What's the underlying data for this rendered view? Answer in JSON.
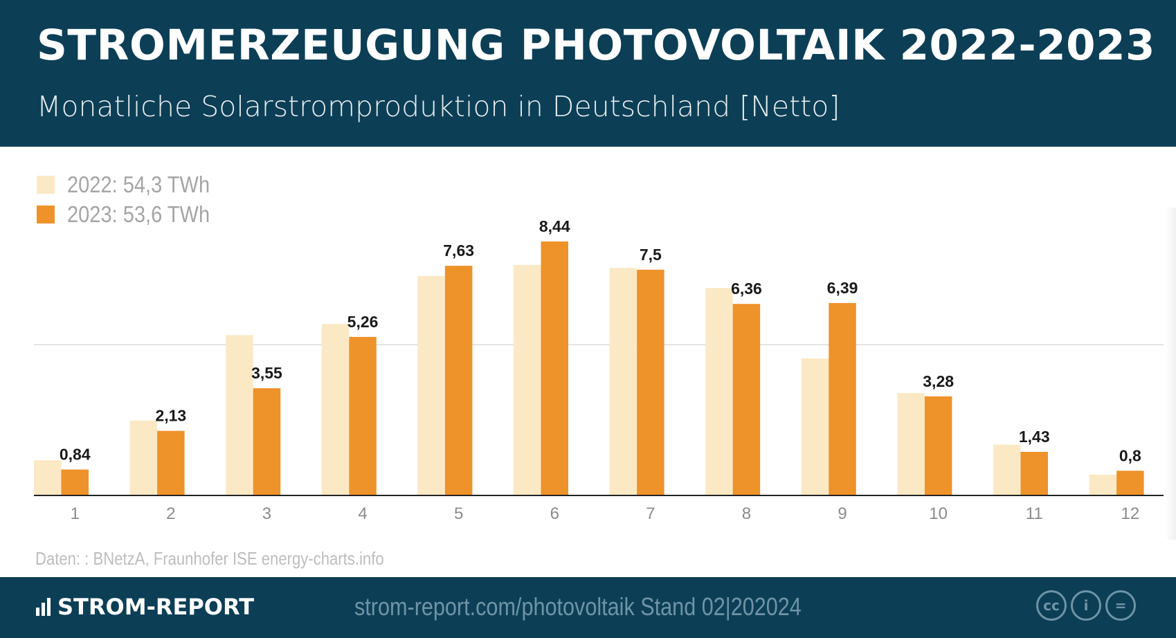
{
  "header": {
    "title": "STROMERZEUGUNG PHOTOVOLTAIK 2022-2023",
    "subtitle": "Monatliche Solarstromproduktion in Deutschland [Netto]"
  },
  "legend": [
    {
      "label": "2022: 54,3 TWh",
      "color": "#fbe9c5"
    },
    {
      "label": "2023: 53,6 TWh",
      "color": "#ee922a"
    }
  ],
  "chart_data": {
    "type": "bar",
    "categories": [
      "1",
      "2",
      "3",
      "4",
      "5",
      "6",
      "7",
      "8",
      "9",
      "10",
      "11",
      "12"
    ],
    "series": [
      {
        "name": "2022: 54,3 TWh",
        "color": "#fbe9c5",
        "values": [
          1.15,
          2.47,
          5.32,
          5.69,
          7.29,
          7.66,
          7.56,
          6.89,
          4.54,
          3.39,
          1.67,
          0.67
        ]
      },
      {
        "name": "2023: 53,6 TWh",
        "color": "#ee922a",
        "values": [
          0.84,
          2.13,
          3.55,
          5.26,
          7.63,
          8.44,
          7.5,
          6.36,
          6.39,
          3.28,
          1.43,
          0.8
        ],
        "data_labels": [
          "0,84",
          "2,13",
          "3,55",
          "5,26",
          "7,63",
          "8,44",
          "7,5",
          "6,36",
          "6,39",
          "3,28",
          "1,43",
          "0,8"
        ]
      }
    ],
    "title": "STROMERZEUGUNG PHOTOVOLTAIK 2022-2023",
    "subtitle": "Monatliche Solarstromproduktion in Deutschland [Netto]",
    "xlabel": "",
    "ylabel": "",
    "ylim": [
      0,
      10
    ],
    "gridlines": [
      5
    ],
    "grid": true,
    "legend_position": "top-left"
  },
  "source": "Daten: : BNetzA, Fraunhofer ISE energy-charts.info",
  "footer": {
    "brand": "STROM-REPORT",
    "url": "strom-report.com/photovoltaik   Stand 02|202024",
    "licenses": [
      "cc",
      "i",
      "="
    ],
    "license_icons": [
      "cc-icon",
      "by-attribution-icon",
      "no-derivatives-icon"
    ]
  }
}
